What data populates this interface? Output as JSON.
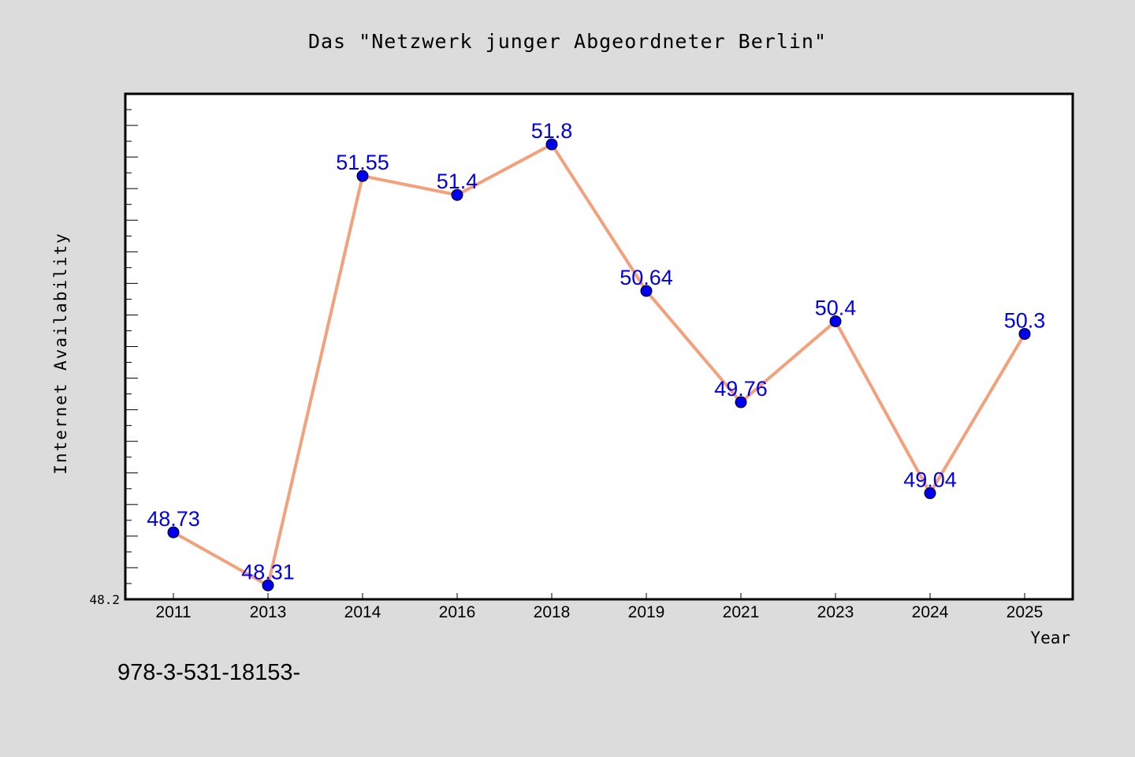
{
  "chart_data": {
    "type": "line",
    "title": "Das \"Netzwerk junger Abgeordneter Berlin\"",
    "xlabel": "Year",
    "ylabel": "Internet Availability",
    "ytick_labels": [
      "48.2"
    ],
    "ylim": [
      48.2,
      52.2
    ],
    "categories": [
      "2011",
      "2013",
      "2014",
      "2016",
      "2018",
      "2019",
      "2021",
      "2023",
      "2024",
      "2025"
    ],
    "series": [
      {
        "values": [
          48.73,
          48.31,
          51.55,
          51.4,
          51.8,
          50.64,
          49.76,
          50.4,
          49.04,
          50.3
        ],
        "data_labels": [
          "48.73",
          "48.31",
          "51.55",
          "51.4",
          "51.8",
          "50.64",
          "49.76",
          "50.4",
          "49.04",
          "50.3"
        ]
      }
    ],
    "grid": false,
    "legend": "none",
    "footnote": "978-3-531-18153-",
    "colors": {
      "line": "#f4a07a",
      "marker": "#0000ee",
      "data_label": "#0000ee",
      "background": "#dcdcdc",
      "plot_background": "#ffffff"
    }
  }
}
